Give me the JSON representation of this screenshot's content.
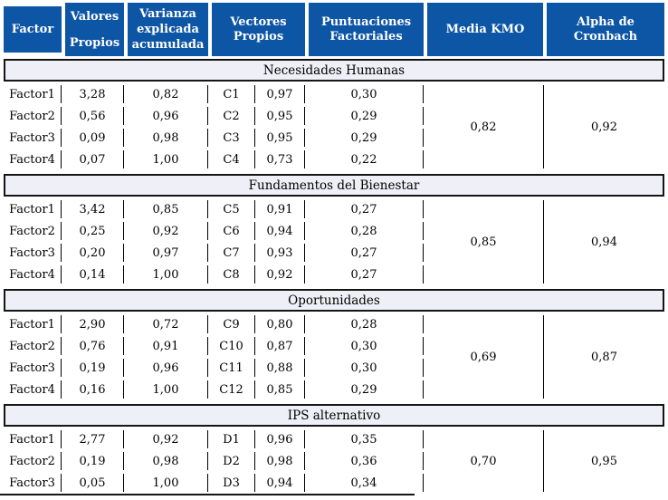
{
  "colors": {
    "header_bg": "#0d55a5",
    "header_text": "#ffffff",
    "band_bg": "#efeff7",
    "line": "#151515"
  },
  "columns": [
    {
      "id": "factor",
      "label": "Factor"
    },
    {
      "id": "valores-propios",
      "label": "Valores\nPropios"
    },
    {
      "id": "varianza-explicada",
      "label": "Varianza\nexplicada\nacumulada"
    },
    {
      "id": "vectores-propios",
      "label": "Vectores\nPropios"
    },
    {
      "id": "puntuaciones-factoriales",
      "label": "Puntuaciones\nFactoriales"
    },
    {
      "id": "media-kmo",
      "label": "Media KMO"
    },
    {
      "id": "alpha-cronbach",
      "label": "Alpha de\nCronbach"
    }
  ],
  "sections": [
    {
      "title": "Necesidades Humanas",
      "media_kmo": "0,82",
      "alpha_cronbach": "0,92",
      "rows": [
        {
          "factor": "Factor1",
          "valor_propio": "3,28",
          "varianza_acumulada": "0,82",
          "vector": "C1",
          "vector_valor": "0,97",
          "puntuacion_factorial": "0,30"
        },
        {
          "factor": "Factor2",
          "valor_propio": "0,56",
          "varianza_acumulada": "0,96",
          "vector": "C2",
          "vector_valor": "0,95",
          "puntuacion_factorial": "0,29"
        },
        {
          "factor": "Factor3",
          "valor_propio": "0,09",
          "varianza_acumulada": "0,98",
          "vector": "C3",
          "vector_valor": "0,95",
          "puntuacion_factorial": "0,29"
        },
        {
          "factor": "Factor4",
          "valor_propio": "0,07",
          "varianza_acumulada": "1,00",
          "vector": "C4",
          "vector_valor": "0,73",
          "puntuacion_factorial": "0,22"
        }
      ]
    },
    {
      "title": "Fundamentos del Bienestar",
      "media_kmo": "0,85",
      "alpha_cronbach": "0,94",
      "rows": [
        {
          "factor": "Factor1",
          "valor_propio": "3,42",
          "varianza_acumulada": "0,85",
          "vector": "C5",
          "vector_valor": "0,91",
          "puntuacion_factorial": "0,27"
        },
        {
          "factor": "Factor2",
          "valor_propio": "0,25",
          "varianza_acumulada": "0,92",
          "vector": "C6",
          "vector_valor": "0,94",
          "puntuacion_factorial": "0,28"
        },
        {
          "factor": "Factor3",
          "valor_propio": "0,20",
          "varianza_acumulada": "0,97",
          "vector": "C7",
          "vector_valor": "0,93",
          "puntuacion_factorial": "0,27"
        },
        {
          "factor": "Factor4",
          "valor_propio": "0,14",
          "varianza_acumulada": "1,00",
          "vector": "C8",
          "vector_valor": "0,92",
          "puntuacion_factorial": "0,27"
        }
      ]
    },
    {
      "title": "Oportunidades",
      "media_kmo": "0,69",
      "alpha_cronbach": "0,87",
      "rows": [
        {
          "factor": "Factor1",
          "valor_propio": "2,90",
          "varianza_acumulada": "0,72",
          "vector": "C9",
          "vector_valor": "0,80",
          "puntuacion_factorial": "0,28"
        },
        {
          "factor": "Factor2",
          "valor_propio": "0,76",
          "varianza_acumulada": "0,91",
          "vector": "C10",
          "vector_valor": "0,87",
          "puntuacion_factorial": "0,30"
        },
        {
          "factor": "Factor3",
          "valor_propio": "0,19",
          "varianza_acumulada": "0,96",
          "vector": "C11",
          "vector_valor": "0,88",
          "puntuacion_factorial": "0,30"
        },
        {
          "factor": "Factor4",
          "valor_propio": "0,16",
          "varianza_acumulada": "1,00",
          "vector": "C12",
          "vector_valor": "0,85",
          "puntuacion_factorial": "0,29"
        }
      ]
    },
    {
      "title": "IPS alternativo",
      "media_kmo": "0,70",
      "alpha_cronbach": "0,95",
      "rows": [
        {
          "factor": "Factor1",
          "valor_propio": "2,77",
          "varianza_acumulada": "0,92",
          "vector": "D1",
          "vector_valor": "0,96",
          "puntuacion_factorial": "0,35"
        },
        {
          "factor": "Factor2",
          "valor_propio": "0,19",
          "varianza_acumulada": "0,98",
          "vector": "D2",
          "vector_valor": "0,98",
          "puntuacion_factorial": "0,36"
        },
        {
          "factor": "Factor3",
          "valor_propio": "0,05",
          "varianza_acumulada": "1,00",
          "vector": "D3",
          "vector_valor": "0,94",
          "puntuacion_factorial": "0,34"
        }
      ]
    }
  ]
}
